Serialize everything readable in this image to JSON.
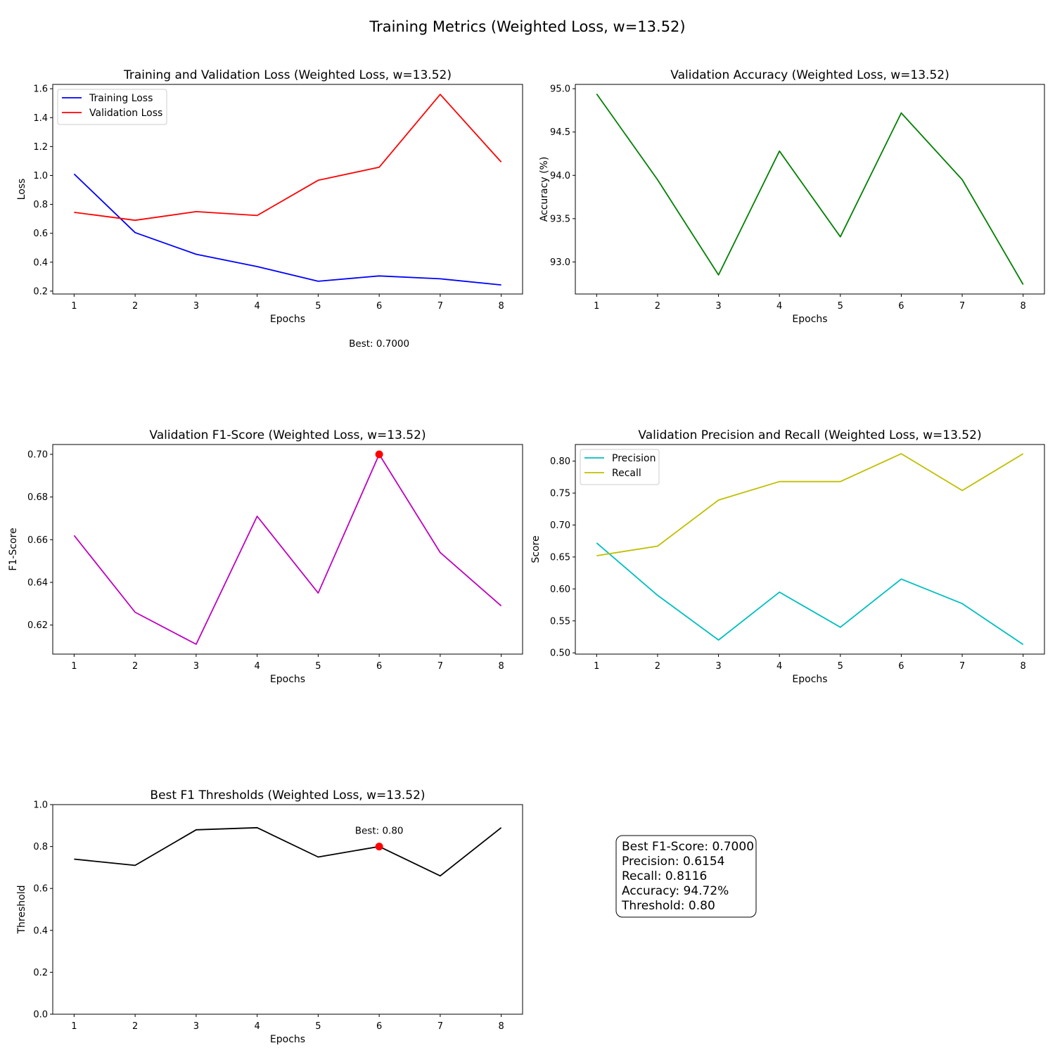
{
  "suptitle": "Training Metrics (Weighted Loss, w=13.52)",
  "stats_box": {
    "lines": [
      "Best F1-Score: 0.7000",
      "Precision: 0.6154",
      "Recall: 0.8116",
      "Accuracy: 94.72%",
      "Threshold: 0.80"
    ]
  },
  "chart_data": [
    {
      "id": "loss",
      "type": "line",
      "title": "Training and Validation Loss (Weighted Loss, w=13.52)",
      "xlabel": "Epochs",
      "ylabel": "Loss",
      "x": [
        1,
        2,
        3,
        4,
        5,
        6,
        7,
        8
      ],
      "xlim": [
        0.65,
        8.35
      ],
      "ylim": [
        0.18,
        1.63
      ],
      "yticks": [
        0.2,
        0.4,
        0.6,
        0.8,
        1.0,
        1.2,
        1.4,
        1.6
      ],
      "ytick_decimals": 1,
      "legend": "upper-left",
      "series": [
        {
          "name": "Training Loss",
          "color": "#0000ff",
          "values": [
            1.01,
            0.605,
            0.455,
            0.37,
            0.268,
            0.305,
            0.285,
            0.243
          ]
        },
        {
          "name": "Validation Loss",
          "color": "#ff0000",
          "values": [
            0.745,
            0.69,
            0.75,
            0.723,
            0.967,
            1.057,
            1.561,
            1.093
          ]
        }
      ],
      "annotations": [
        {
          "text": "Best: 0.7000",
          "x": 6,
          "y": 0.0
        }
      ]
    },
    {
      "id": "accuracy",
      "type": "line",
      "title": "Validation Accuracy (Weighted Loss, w=13.52)",
      "xlabel": "Epochs",
      "ylabel": "Accuracy (%)",
      "x": [
        1,
        2,
        3,
        4,
        5,
        6,
        7,
        8
      ],
      "xlim": [
        0.65,
        8.35
      ],
      "ylim": [
        92.63,
        95.05
      ],
      "yticks": [
        93.0,
        93.5,
        94.0,
        94.5,
        95.0
      ],
      "ytick_decimals": 1,
      "series": [
        {
          "color": "#008000",
          "values": [
            94.94,
            93.95,
            92.85,
            94.28,
            93.29,
            94.72,
            93.95,
            92.74
          ]
        }
      ]
    },
    {
      "id": "f1",
      "type": "line",
      "title": "Validation F1-Score (Weighted Loss, w=13.52)",
      "xlabel": "Epochs",
      "ylabel": "F1-Score",
      "x": [
        1,
        2,
        3,
        4,
        5,
        6,
        7,
        8
      ],
      "xlim": [
        0.65,
        8.35
      ],
      "ylim": [
        0.6064,
        0.7046
      ],
      "yticks": [
        0.62,
        0.64,
        0.66,
        0.68,
        0.7
      ],
      "ytick_decimals": 2,
      "series": [
        {
          "color": "#bf00bf",
          "values": [
            0.662,
            0.626,
            0.611,
            0.671,
            0.635,
            0.7,
            0.654,
            0.629
          ]
        }
      ],
      "markers": [
        {
          "x": 6,
          "y": 0.7,
          "color": "#ff0000"
        }
      ]
    },
    {
      "id": "precision_recall",
      "type": "line",
      "title": "Validation Precision and Recall (Weighted Loss, w=13.52)",
      "xlabel": "Epochs",
      "ylabel": "Score",
      "x": [
        1,
        2,
        3,
        4,
        5,
        6,
        7,
        8
      ],
      "xlim": [
        0.65,
        8.35
      ],
      "ylim": [
        0.498,
        0.826
      ],
      "yticks": [
        0.5,
        0.55,
        0.6,
        0.65,
        0.7,
        0.75,
        0.8
      ],
      "ytick_decimals": 2,
      "legend": "upper-left",
      "series": [
        {
          "name": "Precision",
          "color": "#00bfbf",
          "values": [
            0.672,
            0.59,
            0.52,
            0.595,
            0.54,
            0.6154,
            0.577,
            0.513
          ]
        },
        {
          "name": "Recall",
          "color": "#bfbf00",
          "values": [
            0.652,
            0.667,
            0.739,
            0.768,
            0.768,
            0.8116,
            0.754,
            0.8116
          ]
        }
      ]
    },
    {
      "id": "thresholds",
      "type": "line",
      "title": "Best F1 Thresholds (Weighted Loss, w=13.52)",
      "xlabel": "Epochs",
      "ylabel": "Threshold",
      "x": [
        1,
        2,
        3,
        4,
        5,
        6,
        7,
        8
      ],
      "xlim": [
        0.65,
        8.35
      ],
      "ylim": [
        0.0,
        1.0
      ],
      "yticks": [
        0.0,
        0.2,
        0.4,
        0.6,
        0.8,
        1.0
      ],
      "ytick_decimals": 1,
      "series": [
        {
          "color": "#000000",
          "values": [
            0.74,
            0.71,
            0.88,
            0.89,
            0.75,
            0.8,
            0.66,
            0.89
          ]
        }
      ],
      "markers": [
        {
          "x": 6,
          "y": 0.8,
          "color": "#ff0000"
        }
      ],
      "annotations": [
        {
          "text": "Best: 0.80",
          "x": 6,
          "y": 0.86
        }
      ]
    }
  ]
}
